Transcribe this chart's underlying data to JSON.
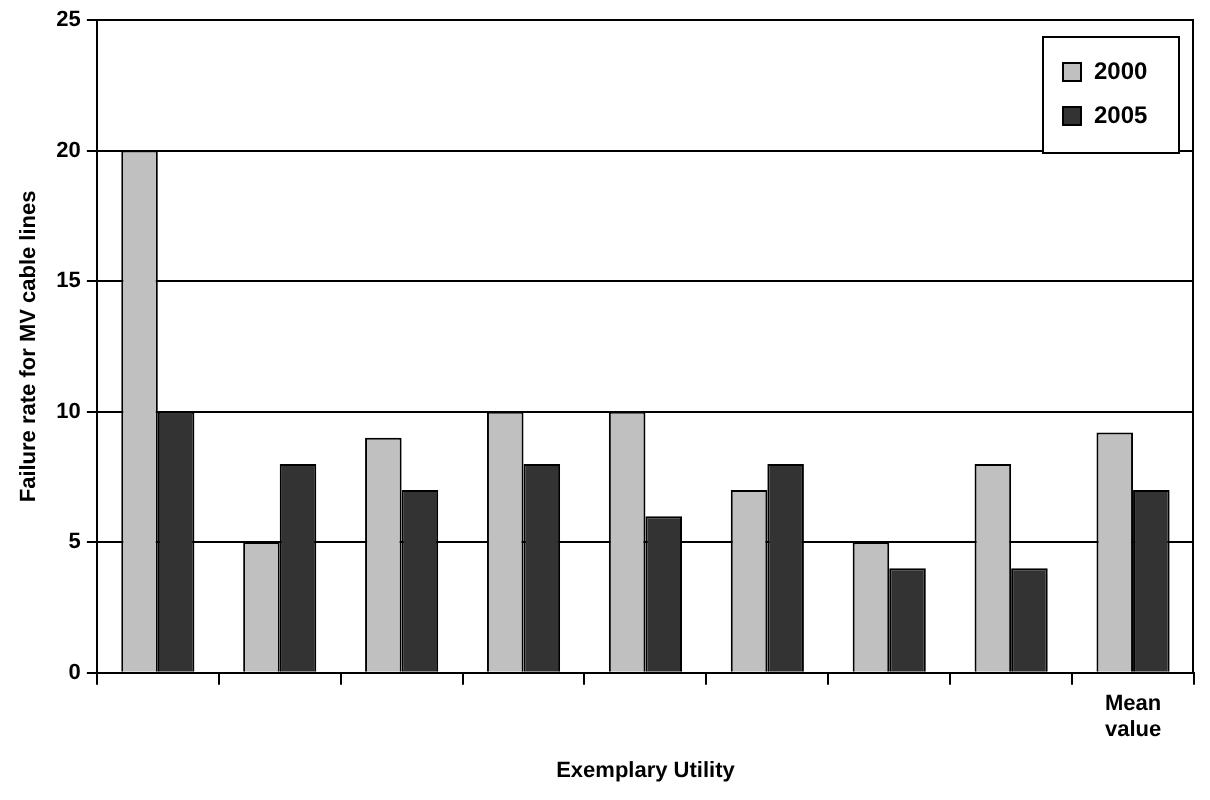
{
  "chart_data": {
    "type": "bar",
    "ylabel": "Failure rate for MV cable lines",
    "xlabel": "Exemplary Utility",
    "categories": [
      null,
      null,
      null,
      null,
      null,
      null,
      null,
      null,
      "Mean value"
    ],
    "series": [
      {
        "name": "2000",
        "color": "#c0c0c0",
        "values": [
          20,
          5,
          9,
          10,
          10,
          7,
          5,
          8,
          9.2
        ]
      },
      {
        "name": "2005",
        "color": "#333333",
        "values": [
          10,
          8,
          7,
          8,
          6,
          8,
          4,
          4,
          7
        ]
      }
    ],
    "ylim": [
      0,
      25
    ],
    "yticks": [
      0,
      5,
      10,
      15,
      20,
      25
    ],
    "grid": "y",
    "legend": "top right"
  }
}
